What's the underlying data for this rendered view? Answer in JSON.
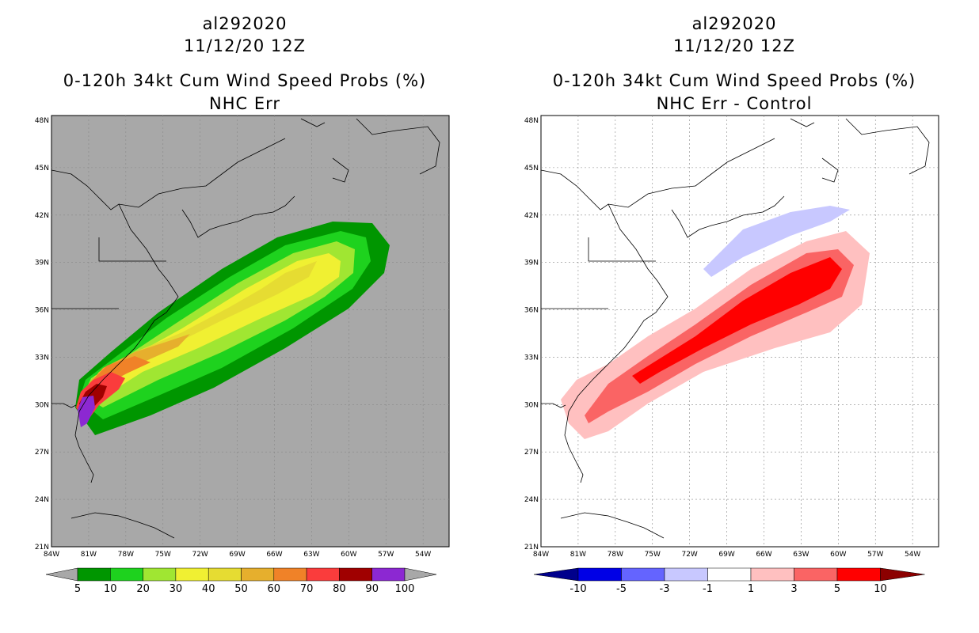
{
  "left": {
    "title_lines": [
      "al292020",
      "11/12/20 12Z",
      "0-120h 34kt Cum Wind Speed Probs (%)",
      "NHC Err"
    ],
    "background": "#a8a8a8",
    "lat_labels": [
      "48N",
      "45N",
      "42N",
      "39N",
      "36N",
      "33N",
      "30N",
      "27N",
      "24N",
      "21N"
    ],
    "lon_labels": [
      "84W",
      "81W",
      "78W",
      "75W",
      "72W",
      "69W",
      "66W",
      "63W",
      "60W",
      "57W",
      "54W"
    ],
    "colorbar": {
      "colors": [
        "#009600",
        "#1ed21e",
        "#a0e632",
        "#f0f032",
        "#e6dc32",
        "#e6af2d",
        "#f08228",
        "#fa3c3c",
        "#a00000",
        "#8c28d2"
      ],
      "labels": [
        "5",
        "10",
        "20",
        "30",
        "40",
        "50",
        "60",
        "70",
        "80",
        "90",
        "100"
      ],
      "end_color": "#a8a8a8"
    }
  },
  "right": {
    "title_lines": [
      "al292020",
      "11/12/20 12Z",
      "0-120h 34kt Cum Wind Speed Probs (%)",
      "NHC Err - Control"
    ],
    "background": "#ffffff",
    "lat_labels": [
      "48N",
      "45N",
      "42N",
      "39N",
      "36N",
      "33N",
      "30N",
      "27N",
      "24N",
      "21N"
    ],
    "lon_labels": [
      "84W",
      "81W",
      "78W",
      "75W",
      "72W",
      "69W",
      "66W",
      "63W",
      "60W",
      "57W",
      "54W"
    ],
    "colorbar": {
      "colors": [
        "#0000e6",
        "#6464ff",
        "#c8c8ff",
        "#ffffff",
        "#ffc0c0",
        "#fa6464",
        "#ff0000"
      ],
      "labels": [
        "-10",
        "-5",
        "-3",
        "-1",
        "1",
        "3",
        "5",
        "10"
      ],
      "low_color": "#00008c",
      "high_color": "#8c0000"
    }
  }
}
